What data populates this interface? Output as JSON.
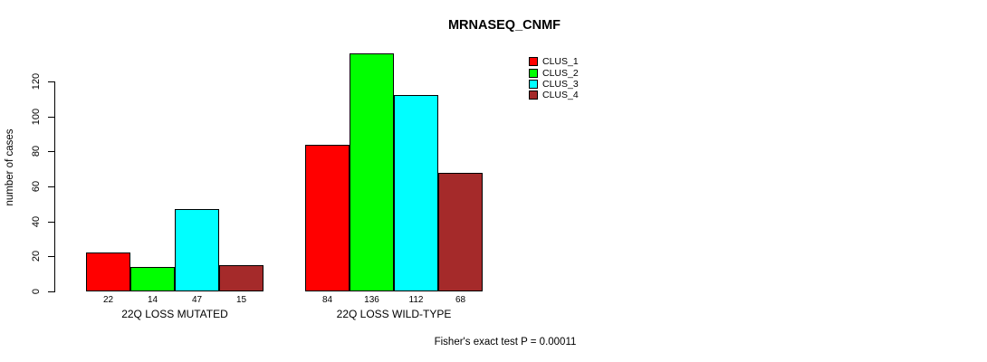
{
  "title": "MRNASEQ_CNMF",
  "ylabel": "number of cases",
  "footer": "Fisher's exact test P = 0.00011",
  "chart_data": {
    "type": "bar",
    "title": "MRNASEQ_CNMF",
    "ylabel": "number of cases",
    "xlabel": "",
    "categories": [
      "22Q LOSS MUTATED",
      "22Q LOSS WILD-TYPE"
    ],
    "series": [
      {
        "name": "CLUS_1",
        "color": "#ff0000",
        "values": [
          22,
          84
        ]
      },
      {
        "name": "CLUS_2",
        "color": "#00ff00",
        "values": [
          14,
          136
        ]
      },
      {
        "name": "CLUS_3",
        "color": "#00ffff",
        "values": [
          47,
          112
        ]
      },
      {
        "name": "CLUS_4",
        "color": "#a52a2a",
        "values": [
          15,
          68
        ]
      }
    ],
    "yticks": [
      0,
      20,
      40,
      60,
      80,
      100,
      120
    ],
    "ylim": [
      0,
      140
    ],
    "bar_value_labels": true,
    "legend_position": "top-right",
    "grid": false,
    "annotation": "Fisher's exact test P = 0.00011"
  }
}
